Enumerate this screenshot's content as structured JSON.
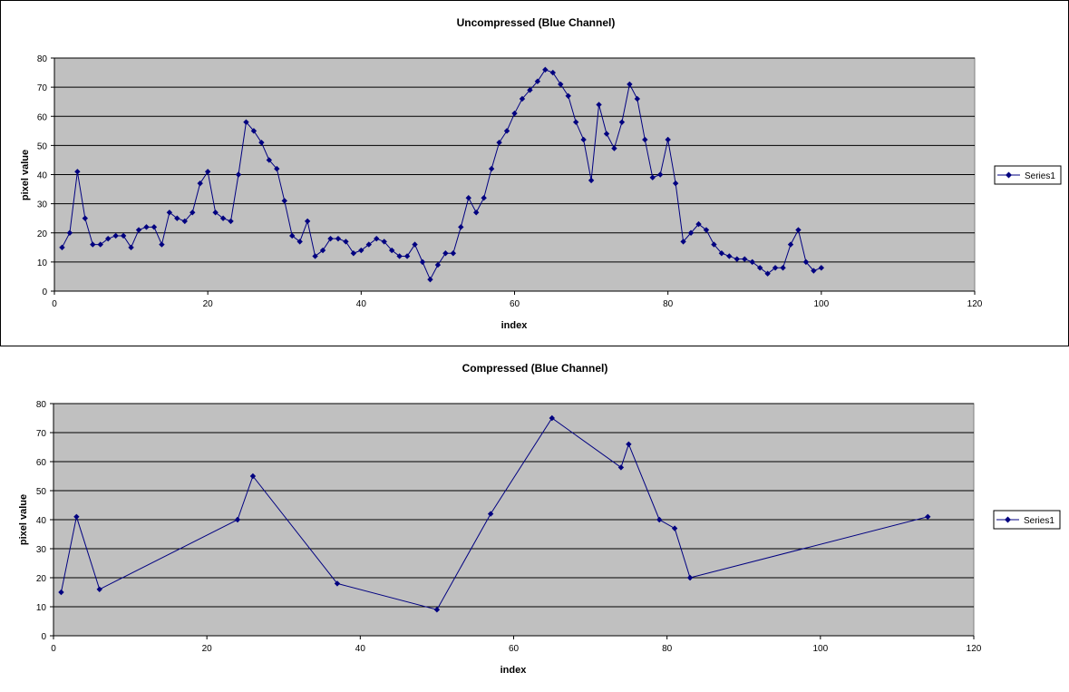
{
  "chart_data": [
    {
      "type": "line",
      "title": "Uncompressed (Blue Channel)",
      "xlabel": "index",
      "ylabel": "pixel value",
      "xlim": [
        0,
        120
      ],
      "ylim": [
        0,
        80
      ],
      "xticks": [
        0,
        20,
        40,
        60,
        80,
        100,
        120
      ],
      "yticks": [
        0,
        10,
        20,
        30,
        40,
        50,
        60,
        70,
        80
      ],
      "grid": "horizontal",
      "legend": "right",
      "series": [
        {
          "name": "Series1",
          "color": "#000080",
          "x": [
            1,
            2,
            3,
            4,
            5,
            6,
            7,
            8,
            9,
            10,
            11,
            12,
            13,
            14,
            15,
            16,
            17,
            18,
            19,
            20,
            21,
            22,
            23,
            24,
            25,
            26,
            27,
            28,
            29,
            30,
            31,
            32,
            33,
            34,
            35,
            36,
            37,
            38,
            39,
            40,
            41,
            42,
            43,
            44,
            45,
            46,
            47,
            48,
            49,
            50,
            51,
            52,
            53,
            54,
            55,
            56,
            57,
            58,
            59,
            60,
            61,
            62,
            63,
            64,
            65,
            66,
            67,
            68,
            69,
            70,
            71,
            72,
            73,
            74,
            75,
            76,
            77,
            78,
            79,
            80,
            81,
            82,
            83,
            84,
            85,
            86,
            87,
            88,
            89,
            90,
            91,
            92,
            93,
            94,
            95,
            96,
            97,
            98,
            99,
            100
          ],
          "values": [
            15,
            20,
            41,
            25,
            16,
            16,
            18,
            19,
            19,
            15,
            21,
            22,
            22,
            16,
            27,
            25,
            24,
            27,
            37,
            41,
            27,
            25,
            24,
            40,
            58,
            55,
            51,
            45,
            42,
            31,
            19,
            17,
            24,
            12,
            14,
            18,
            18,
            17,
            13,
            14,
            16,
            18,
            17,
            14,
            12,
            12,
            16,
            10,
            4,
            9,
            13,
            13,
            22,
            32,
            27,
            32,
            42,
            51,
            55,
            61,
            66,
            69,
            72,
            76,
            75,
            71,
            67,
            58,
            52,
            38,
            64,
            54,
            49,
            58,
            71,
            66,
            52,
            39,
            40,
            52,
            37,
            17,
            20,
            23,
            21,
            16,
            13,
            12,
            11,
            11,
            10,
            8,
            6,
            8,
            8,
            16,
            21,
            10,
            7,
            8
          ]
        }
      ]
    },
    {
      "type": "line",
      "title": "Compressed (Blue Channel)",
      "xlabel": "index",
      "ylabel": "pixel value",
      "xlim": [
        0,
        120
      ],
      "ylim": [
        0,
        80
      ],
      "xticks": [
        0,
        20,
        40,
        60,
        80,
        100,
        120
      ],
      "yticks": [
        0,
        10,
        20,
        30,
        40,
        50,
        60,
        70,
        80
      ],
      "grid": "horizontal",
      "legend": "right",
      "series": [
        {
          "name": "Series1",
          "color": "#000080",
          "x": [
            1,
            3,
            6,
            24,
            26,
            37,
            50,
            57,
            65,
            74,
            75,
            79,
            81,
            83,
            114
          ],
          "values": [
            15,
            41,
            16,
            40,
            55,
            18,
            9,
            42,
            75,
            58,
            66,
            40,
            37,
            20,
            41
          ]
        }
      ]
    }
  ]
}
